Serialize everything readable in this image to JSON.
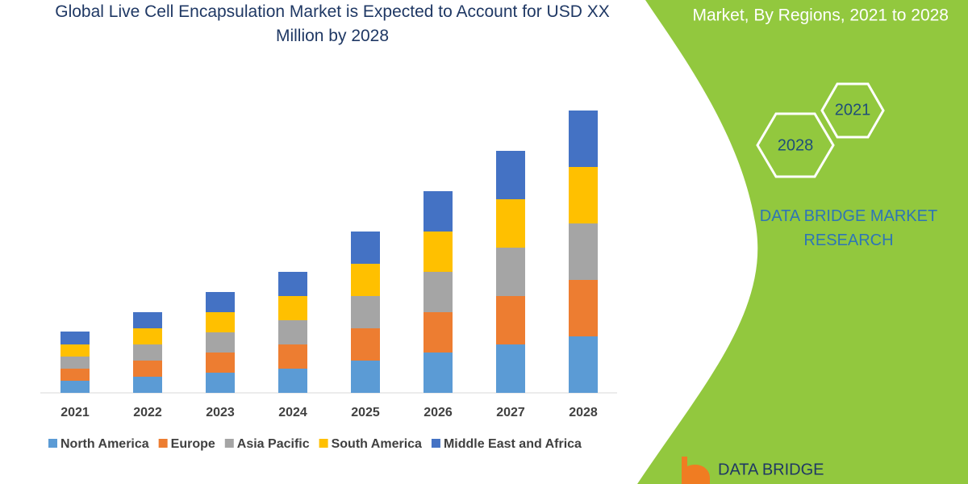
{
  "chart_data": {
    "type": "stacked-bar",
    "title": "Global Live Cell Encapsulation Market is Expected to Account for USD XX Million by 2028",
    "categories": [
      "2021",
      "2022",
      "2023",
      "2024",
      "2025",
      "2026",
      "2027",
      "2028"
    ],
    "series": [
      {
        "name": "North America",
        "color": "#5b9bd5",
        "values": [
          15,
          20,
          25,
          30,
          40,
          50,
          60,
          70
        ]
      },
      {
        "name": "Europe",
        "color": "#ed7d31",
        "values": [
          15,
          20,
          25,
          30,
          40,
          50,
          60,
          70
        ]
      },
      {
        "name": "Asia Pacific",
        "color": "#a5a5a5",
        "values": [
          15,
          20,
          25,
          30,
          40,
          50,
          60,
          70
        ]
      },
      {
        "name": "South America",
        "color": "#ffc000",
        "values": [
          15,
          20,
          25,
          30,
          40,
          50,
          60,
          70
        ]
      },
      {
        "name": "Middle East and Africa",
        "color": "#4472c4",
        "values": [
          16,
          20,
          25,
          30,
          40,
          50,
          60,
          70
        ]
      }
    ],
    "ylim": [
      0,
      400
    ]
  },
  "sidebar": {
    "heading": "Market, By Regions, 2021 to 2028",
    "hexagons": [
      "2021",
      "2028"
    ],
    "brand": "DATA BRIDGE MARKET RESEARCH",
    "logo": "DATA BRIDGE"
  }
}
